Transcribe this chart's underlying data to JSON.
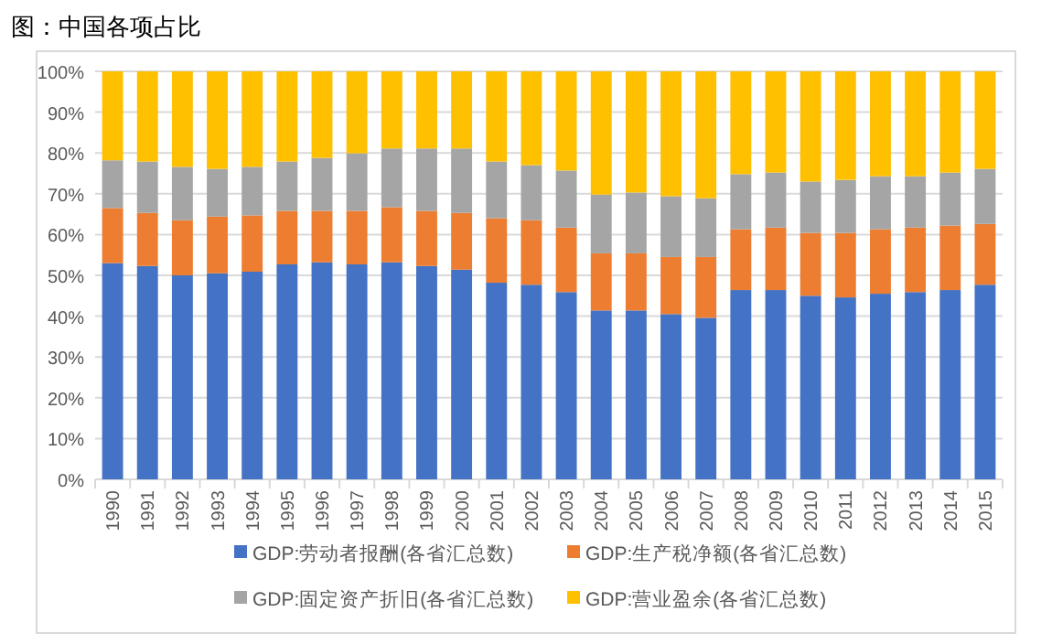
{
  "chart_data": {
    "type": "bar",
    "stacked": true,
    "title": "图：中国各项占比",
    "categories": [
      "1990",
      "1991",
      "1992",
      "1993",
      "1994",
      "1995",
      "1996",
      "1997",
      "1998",
      "1999",
      "2000",
      "2001",
      "2002",
      "2003",
      "2004",
      "2005",
      "2006",
      "2007",
      "2008",
      "2009",
      "2010",
      "2011",
      "2012",
      "2013",
      "2014",
      "2015"
    ],
    "series": [
      {
        "name": "GDP:劳动者报酬(各省汇总数)",
        "color": "#4472c4",
        "values": [
          53.0,
          52.3,
          50.0,
          50.5,
          50.9,
          52.7,
          53.2,
          52.7,
          53.2,
          52.3,
          51.4,
          48.2,
          47.7,
          45.9,
          41.4,
          41.4,
          40.5,
          39.6,
          46.4,
          46.4,
          45.0,
          44.6,
          45.5,
          45.9,
          46.4,
          47.7
        ]
      },
      {
        "name": "GDP:生产税净额(各省汇总数)",
        "color": "#ed7d31",
        "values": [
          13.5,
          13.0,
          13.5,
          13.9,
          13.8,
          13.1,
          12.6,
          13.1,
          13.5,
          13.5,
          13.9,
          15.8,
          15.8,
          15.8,
          14.0,
          14.0,
          14.0,
          14.9,
          14.9,
          15.3,
          15.4,
          15.8,
          15.8,
          15.8,
          15.8,
          14.9
        ]
      },
      {
        "name": "GDP:固定资产折旧(各省汇总数)",
        "color": "#a5a5a5",
        "values": [
          11.7,
          12.6,
          13.1,
          11.7,
          11.9,
          12.1,
          13.0,
          14.1,
          14.4,
          15.3,
          15.8,
          13.9,
          13.5,
          14.0,
          14.4,
          14.9,
          14.9,
          14.4,
          13.5,
          13.5,
          12.6,
          13.0,
          13.0,
          12.6,
          13.0,
          13.5
        ]
      },
      {
        "name": "GDP:营业盈余(各省汇总数)",
        "color": "#ffc000",
        "values": [
          21.8,
          22.1,
          23.4,
          23.9,
          23.4,
          22.1,
          21.2,
          20.1,
          18.9,
          18.9,
          18.9,
          22.1,
          23.0,
          24.3,
          30.2,
          29.7,
          30.6,
          31.1,
          25.2,
          24.8,
          27.0,
          26.6,
          25.7,
          25.7,
          24.8,
          23.9
        ]
      }
    ],
    "ylim": [
      0,
      100
    ],
    "yticks": [
      {
        "value": 0,
        "label": "0%"
      },
      {
        "value": 10,
        "label": "10%"
      },
      {
        "value": 20,
        "label": "20%"
      },
      {
        "value": 30,
        "label": "30%"
      },
      {
        "value": 40,
        "label": "40%"
      },
      {
        "value": 50,
        "label": "50%"
      },
      {
        "value": 60,
        "label": "60%"
      },
      {
        "value": 70,
        "label": "70%"
      },
      {
        "value": 80,
        "label": "80%"
      },
      {
        "value": 90,
        "label": "90%"
      },
      {
        "value": 100,
        "label": "100%"
      }
    ],
    "grid": "y",
    "legend": "bottom"
  }
}
